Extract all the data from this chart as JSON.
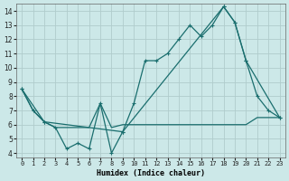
{
  "xlabel": "Humidex (Indice chaleur)",
  "background_color": "#cce8e8",
  "grid_color": "#b0cccc",
  "line_color": "#1a6e6e",
  "xlim_min": -0.5,
  "xlim_max": 23.5,
  "ylim_min": 3.7,
  "ylim_max": 14.5,
  "xticks": [
    0,
    1,
    2,
    3,
    4,
    5,
    6,
    7,
    8,
    9,
    10,
    11,
    12,
    13,
    14,
    15,
    16,
    17,
    18,
    19,
    20,
    21,
    22,
    23
  ],
  "yticks": [
    4,
    5,
    6,
    7,
    8,
    9,
    10,
    11,
    12,
    13,
    14
  ],
  "series_zigzag_x": [
    0,
    1,
    2,
    3,
    4,
    5,
    6,
    7,
    8,
    9,
    10,
    11,
    12,
    13,
    14,
    15,
    16,
    17,
    18,
    19,
    20,
    21,
    22,
    23
  ],
  "series_zigzag_y": [
    8.5,
    7.0,
    6.2,
    5.8,
    4.3,
    4.7,
    4.3,
    7.5,
    4.0,
    5.5,
    7.5,
    10.5,
    10.5,
    11.0,
    12.0,
    13.0,
    12.2,
    13.0,
    14.3,
    13.2,
    10.5,
    8.0,
    7.0,
    6.5
  ],
  "series_flat_x": [
    0,
    1,
    2,
    3,
    4,
    5,
    6,
    7,
    8,
    9,
    10,
    11,
    12,
    13,
    14,
    15,
    16,
    17,
    18,
    19,
    20,
    21,
    22,
    23
  ],
  "series_flat_y": [
    8.5,
    7.0,
    6.2,
    5.8,
    5.8,
    5.8,
    5.8,
    7.5,
    5.8,
    6.0,
    6.0,
    6.0,
    6.0,
    6.0,
    6.0,
    6.0,
    6.0,
    6.0,
    6.0,
    6.0,
    6.0,
    6.5,
    6.5,
    6.5
  ],
  "series_triangle_x": [
    0,
    2,
    9,
    18,
    19,
    20,
    23
  ],
  "series_triangle_y": [
    8.5,
    6.2,
    5.5,
    14.3,
    13.2,
    10.5,
    6.5
  ]
}
